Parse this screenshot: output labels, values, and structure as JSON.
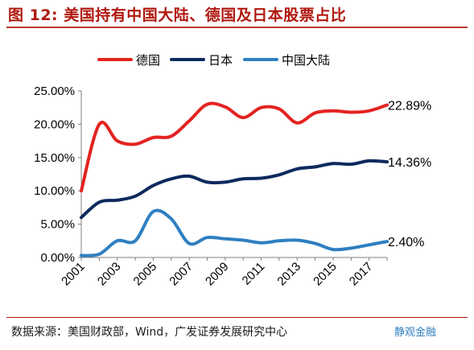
{
  "header": {
    "title": "图 12:  美国持有中国大陆、德国及日本股票占比"
  },
  "footer": {
    "source": "数据来源：美国财政部，Wind，广发证券发展研究中心",
    "watermark": "静观金融"
  },
  "chart_data": {
    "type": "line",
    "x": [
      2001,
      2002,
      2003,
      2004,
      2005,
      2006,
      2007,
      2008,
      2009,
      2010,
      2011,
      2012,
      2013,
      2014,
      2015,
      2016,
      2017,
      2018
    ],
    "xticks": [
      "2001",
      "2003",
      "2005",
      "2007",
      "2009",
      "2011",
      "2013",
      "2015",
      "2017"
    ],
    "yticks": [
      "0.00%",
      "5.00%",
      "10.00%",
      "15.00%",
      "20.00%",
      "25.00%"
    ],
    "ylim": [
      0,
      25
    ],
    "xlabel": "",
    "ylabel": "",
    "grid": false,
    "legend_position": "top-center",
    "series": [
      {
        "name": "德国",
        "color": "#e32320",
        "values": [
          10.0,
          20.0,
          17.5,
          17.0,
          18.0,
          18.2,
          20.5,
          23.0,
          22.6,
          21.0,
          22.5,
          22.3,
          20.2,
          21.7,
          22.0,
          21.8,
          22.0,
          22.89
        ],
        "end_label": "22.89%"
      },
      {
        "name": "日本",
        "color": "#0d2a5e",
        "values": [
          6.0,
          8.3,
          8.6,
          9.2,
          10.8,
          11.8,
          12.2,
          11.3,
          11.3,
          11.8,
          11.9,
          12.4,
          13.3,
          13.6,
          14.1,
          14.0,
          14.5,
          14.36
        ],
        "end_label": "14.36%"
      },
      {
        "name": "中国大陆",
        "color": "#2f7fc1",
        "values": [
          0.3,
          0.5,
          2.5,
          2.5,
          6.9,
          5.8,
          2.1,
          3.0,
          2.8,
          2.6,
          2.2,
          2.5,
          2.6,
          2.1,
          1.2,
          1.4,
          1.9,
          2.4
        ],
        "end_label": "2.40%"
      }
    ]
  }
}
